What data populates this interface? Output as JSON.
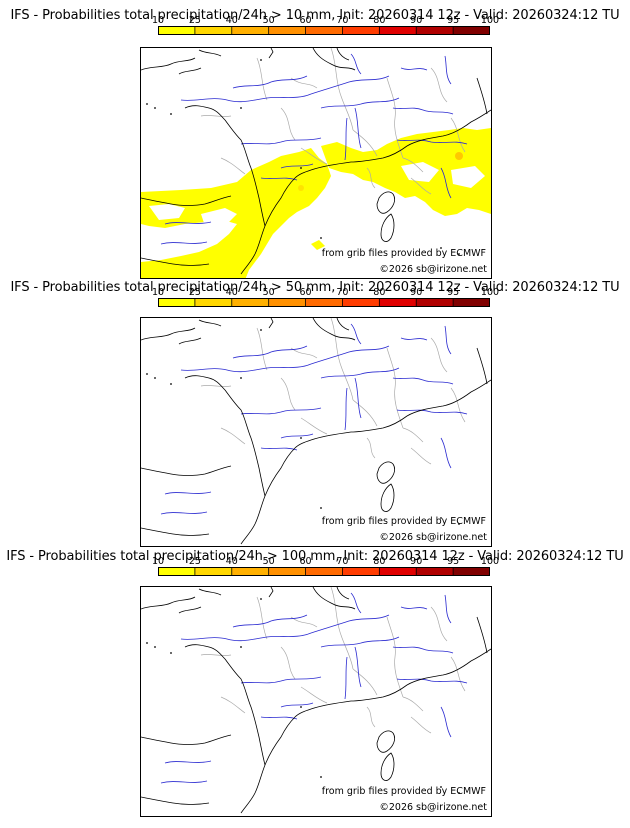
{
  "panels": [
    {
      "title": "IFS - Probabilities total precipitation/24h > 10 mm, Init: 20260314 12z - Valid: 20260324:12 TU",
      "threshold_mm": 10,
      "has_precip": true
    },
    {
      "title": "IFS - Probabilities total precipitation/24h > 50 mm, Init: 20260314 12z - Valid: 20260324:12 TU",
      "threshold_mm": 50,
      "has_precip": false
    },
    {
      "title": "IFS - Probabilities total precipitation/24h > 100 mm, Init: 20260314 12z - Valid: 20260324:12 TU",
      "threshold_mm": 100,
      "has_precip": false
    }
  ],
  "colorbar": {
    "ticks": [
      "10",
      "25",
      "40",
      "50",
      "60",
      "70",
      "80",
      "90",
      "95",
      "100"
    ],
    "colors": [
      "#ffff00",
      "#ffd700",
      "#ffb000",
      "#ff9000",
      "#ff6a00",
      "#ff3c00",
      "#e00000",
      "#b00000",
      "#800000"
    ]
  },
  "credits": {
    "source": "from grib files provided by ECMWF",
    "copyright": "©2026 sb@irizone.net"
  },
  "map_colors": {
    "coast": "#000000",
    "rivers": "#2a2ad0",
    "borders": "#aaaaaa",
    "precip": "#ffff00"
  }
}
